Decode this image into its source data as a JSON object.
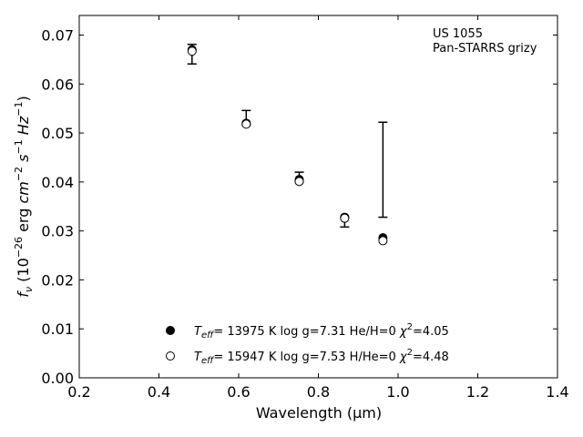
{
  "chart_data": {
    "type": "scatter",
    "xlabel": "Wavelength (μm)",
    "ylabel": "f_ν (10^-26 erg cm^-2 s^-1 Hz^-1)",
    "xlim": [
      0.2,
      1.4
    ],
    "ylim": [
      0.0,
      0.074
    ],
    "xticks": [
      0.2,
      0.4,
      0.6,
      0.8,
      1.0,
      1.2,
      1.4
    ],
    "xtick_labels": [
      "0.2",
      "0.4",
      "0.6",
      "0.8",
      "1.0",
      "1.2",
      "1.4"
    ],
    "yticks": [
      0.0,
      0.01,
      0.02,
      0.03,
      0.04,
      0.05,
      0.06,
      0.07
    ],
    "ytick_labels": [
      "0.00",
      "0.01",
      "0.02",
      "0.03",
      "0.04",
      "0.05",
      "0.06",
      "0.07"
    ],
    "grid": false,
    "annotation": [
      "US 1055",
      "Pan-STARRS grizy"
    ],
    "observed": {
      "x": [
        0.483,
        0.619,
        0.752,
        0.866,
        0.962
      ],
      "y": [
        0.0661,
        0.0516,
        0.0405,
        0.0323,
        0.0425
      ],
      "yerr_low": [
        0.002,
        0.0,
        0.0005,
        0.0015,
        0.0097
      ],
      "yerr_high": [
        0.002,
        0.003,
        0.0015,
        0.0005,
        0.0097
      ]
    },
    "series": [
      {
        "label_parts": [
          "T",
          "eff",
          "= 13975 K  log g=7.31  He/H=0  ",
          "χ",
          "2",
          "=4.05"
        ],
        "marker": "filled-circle",
        "x": [
          0.483,
          0.619,
          0.752,
          0.866,
          0.962
        ],
        "y": [
          0.067,
          0.052,
          0.0405,
          0.0328,
          0.0286
        ]
      },
      {
        "label_parts": [
          "T",
          "eff",
          "= 15947 K  log g=7.53  H/He=0  ",
          "χ",
          "2",
          "=4.48"
        ],
        "marker": "open-circle",
        "x": [
          0.483,
          0.619,
          0.752,
          0.866,
          0.962
        ],
        "y": [
          0.0667,
          0.0518,
          0.0401,
          0.0326,
          0.028
        ]
      }
    ],
    "legend_position": "lower-center"
  }
}
